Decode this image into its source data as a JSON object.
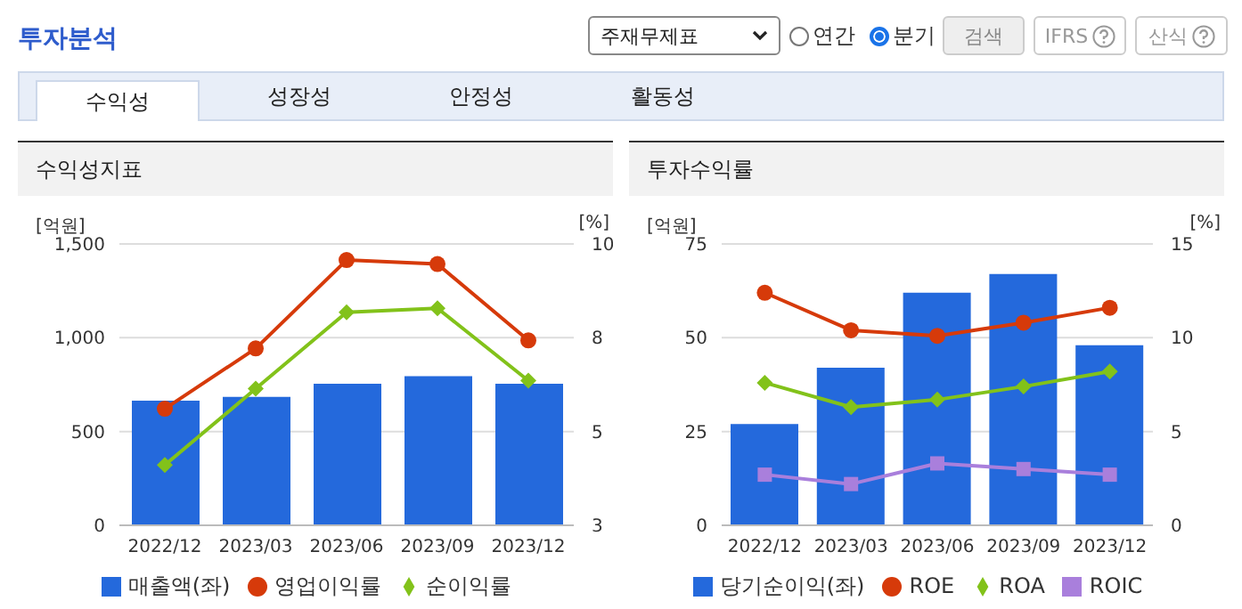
{
  "chart_data": [
    {
      "type": "bar",
      "title": "수익성지표",
      "annotations": [
        "투자분석",
        "주재무제표",
        "연간",
        "분기",
        "검색",
        "IFRS",
        "산식",
        "수익성",
        "성장성",
        "안정성",
        "활동성"
      ],
      "categories": [
        "2022/12",
        "2023/03",
        "2023/06",
        "2023/09",
        "2023/12"
      ],
      "series": [
        {
          "name": "매출액(좌)",
          "color": "#2469dc",
          "values": [
            665,
            685,
            755,
            795,
            755
          ]
        },
        {
          "name": "영업이익률",
          "type": "line",
          "axis": "y2",
          "marker": "circle",
          "color": "#d63a0a",
          "values": [
            5.9,
            7.4,
            9.6,
            9.5,
            7.6
          ]
        },
        {
          "name": "순이익률",
          "type": "line",
          "axis": "y2",
          "marker": "diamond",
          "color": "#82c21a",
          "values": [
            4.5,
            6.4,
            8.3,
            8.4,
            6.6
          ]
        }
      ],
      "ylabel": "[억원]",
      "y2label": "[%]",
      "ylim": [
        0,
        1500
      ],
      "yticks": [
        0,
        500,
        {
          "value": 1000,
          "label": "1,000"
        },
        {
          "value": 1500,
          "label": "1,500"
        }
      ],
      "y2lim": [
        3,
        10
      ],
      "y2ticks": [
        3,
        {
          "value": 5.333,
          "label": "5"
        },
        {
          "value": 7.667,
          "label": "8"
        },
        10
      ],
      "grid": "y",
      "legend": "bottom"
    },
    {
      "type": "bar",
      "title": "투자수익률",
      "categories": [
        "2022/12",
        "2023/03",
        "2023/06",
        "2023/09",
        "2023/12"
      ],
      "series": [
        {
          "name": "당기순이익(좌)",
          "color": "#2469dc",
          "values": [
            27,
            42,
            62,
            67,
            48
          ]
        },
        {
          "name": "ROE",
          "type": "line",
          "axis": "y2",
          "marker": "circle",
          "color": "#d63a0a",
          "values": [
            12.4,
            10.4,
            10.1,
            10.8,
            11.6
          ]
        },
        {
          "name": "ROA",
          "type": "line",
          "axis": "y2",
          "marker": "diamond",
          "color": "#82c21a",
          "values": [
            7.6,
            6.3,
            6.7,
            7.4,
            8.2
          ]
        },
        {
          "name": "ROIC",
          "type": "line",
          "axis": "y2",
          "marker": "square",
          "color": "#a97fdc",
          "values": [
            2.7,
            2.2,
            3.3,
            3.0,
            2.7
          ]
        }
      ],
      "ylabel": "[억원]",
      "y2label": "[%]",
      "ylim": [
        0,
        75
      ],
      "yticks": [
        0,
        25,
        50,
        75
      ],
      "y2lim": [
        0,
        15
      ],
      "y2ticks": [
        0,
        5,
        10,
        15
      ],
      "grid": "y",
      "legend": "bottom"
    }
  ]
}
